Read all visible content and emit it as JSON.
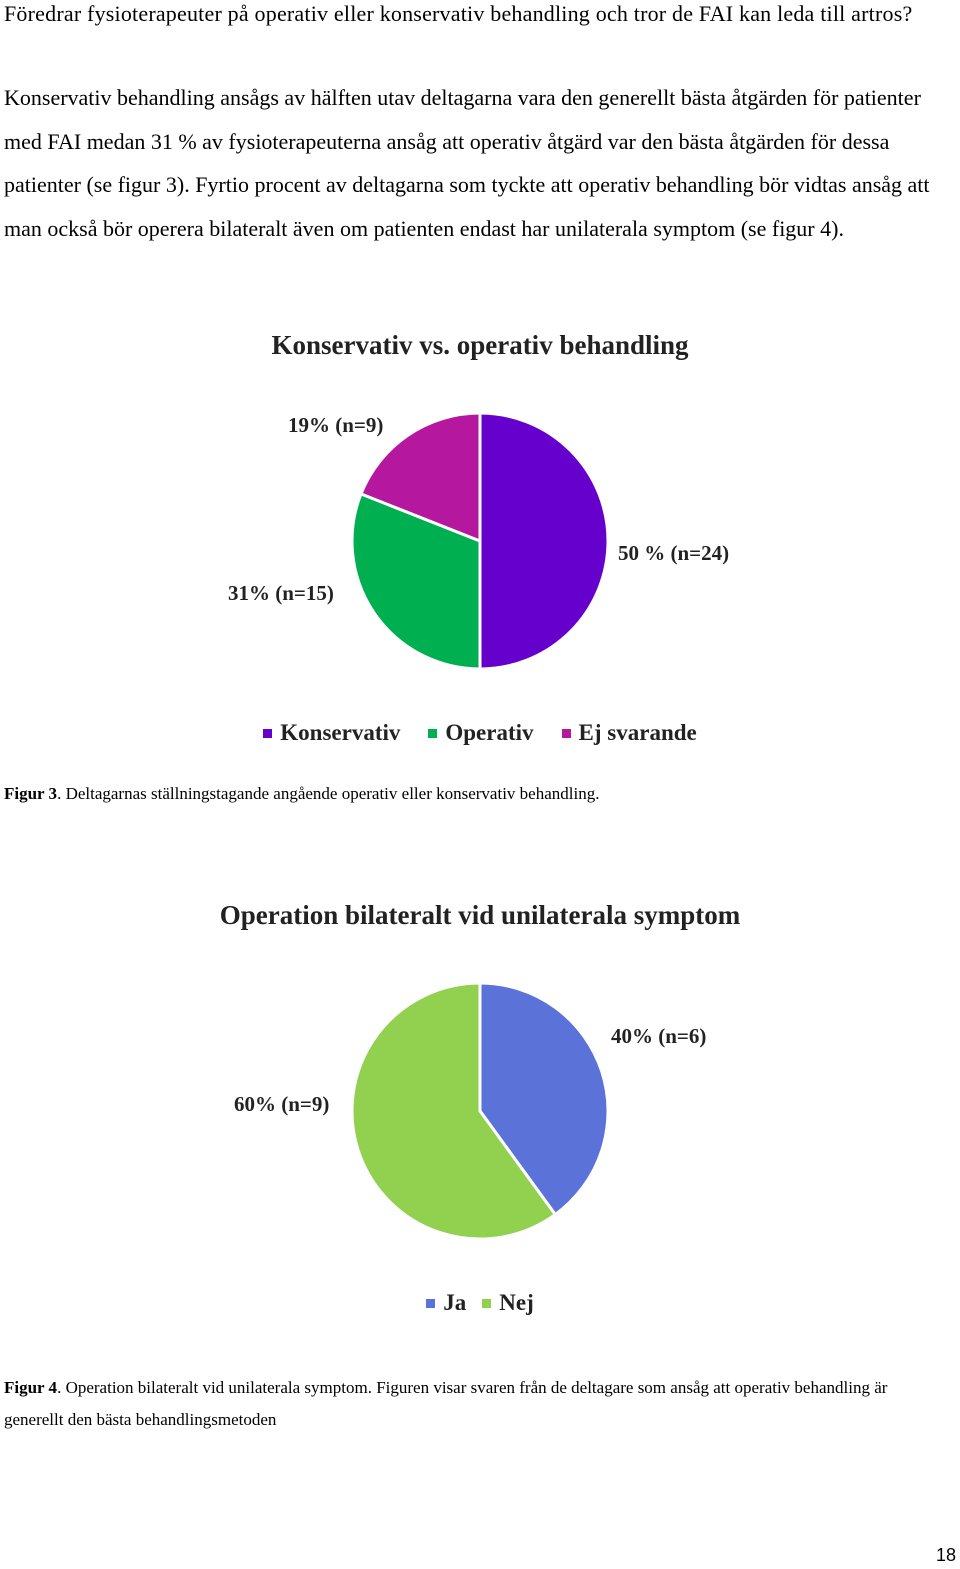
{
  "text": {
    "question": "Föredrar fysioterapeuter på operativ eller konservativ behandling och tror de FAI kan leda till artros?",
    "body": "Konservativ behandling ansågs av hälften utav deltagarna vara den generellt bästa åtgärden för patienter med FAI medan 31 % av fysioterapeuterna ansåg att operativ åtgärd var den bästa åtgärden för dessa patienter (se figur 3). Fyrtio procent av deltagarna som tyckte att operativ behandling bör vidtas ansåg att man också bör operera bilateralt även om patienten endast har unilaterala symptom (se figur 4)."
  },
  "chart_data": [
    {
      "type": "pie",
      "title": "Konservativ vs. operativ behandling",
      "categories": [
        "Konservativ",
        "Operativ",
        "Ej svarande"
      ],
      "values": [
        50,
        31,
        19
      ],
      "labels": [
        "50 % (n=24)",
        "31% (n=15)",
        "19% (n=9)"
      ],
      "colors": [
        "#6600cc",
        "#00b050",
        "#b5179e"
      ],
      "legend": "bottom"
    },
    {
      "type": "pie",
      "title": "Operation bilateralt vid unilaterala symptom",
      "categories": [
        "Ja",
        "Nej"
      ],
      "values": [
        40,
        60
      ],
      "labels": [
        "40% (n=6)",
        "60% (n=9)"
      ],
      "colors": [
        "#5b72d9",
        "#92d050"
      ],
      "legend": "bottom"
    }
  ],
  "captions": {
    "fig3_label": "Figur 3",
    "fig3_text": ". Deltagarnas ställningstagande angående operativ eller konservativ behandling.",
    "fig4_label": "Figur 4",
    "fig4_text": ". Operation bilateralt vid unilaterala symptom. Figuren visar svaren från de deltagare som ansåg att operativ behandling är generellt den bästa behandlingsmetoden"
  },
  "page_number": "18"
}
